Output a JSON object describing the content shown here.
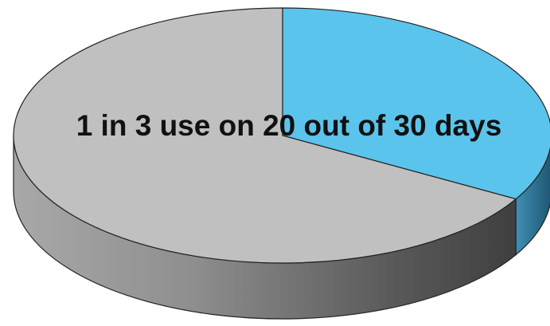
{
  "chart_data": {
    "type": "pie",
    "style": "3d",
    "categories": [
      "",
      ""
    ],
    "values": [
      33.3,
      66.7
    ],
    "colors": [
      "#5bc4ec",
      "#c0c0c0"
    ],
    "side_colors": [
      "#2e6f8e",
      "#8e8e8e"
    ],
    "annotation": "1 in 3 use on 20 out of 30 days",
    "legend": "none",
    "title": ""
  }
}
